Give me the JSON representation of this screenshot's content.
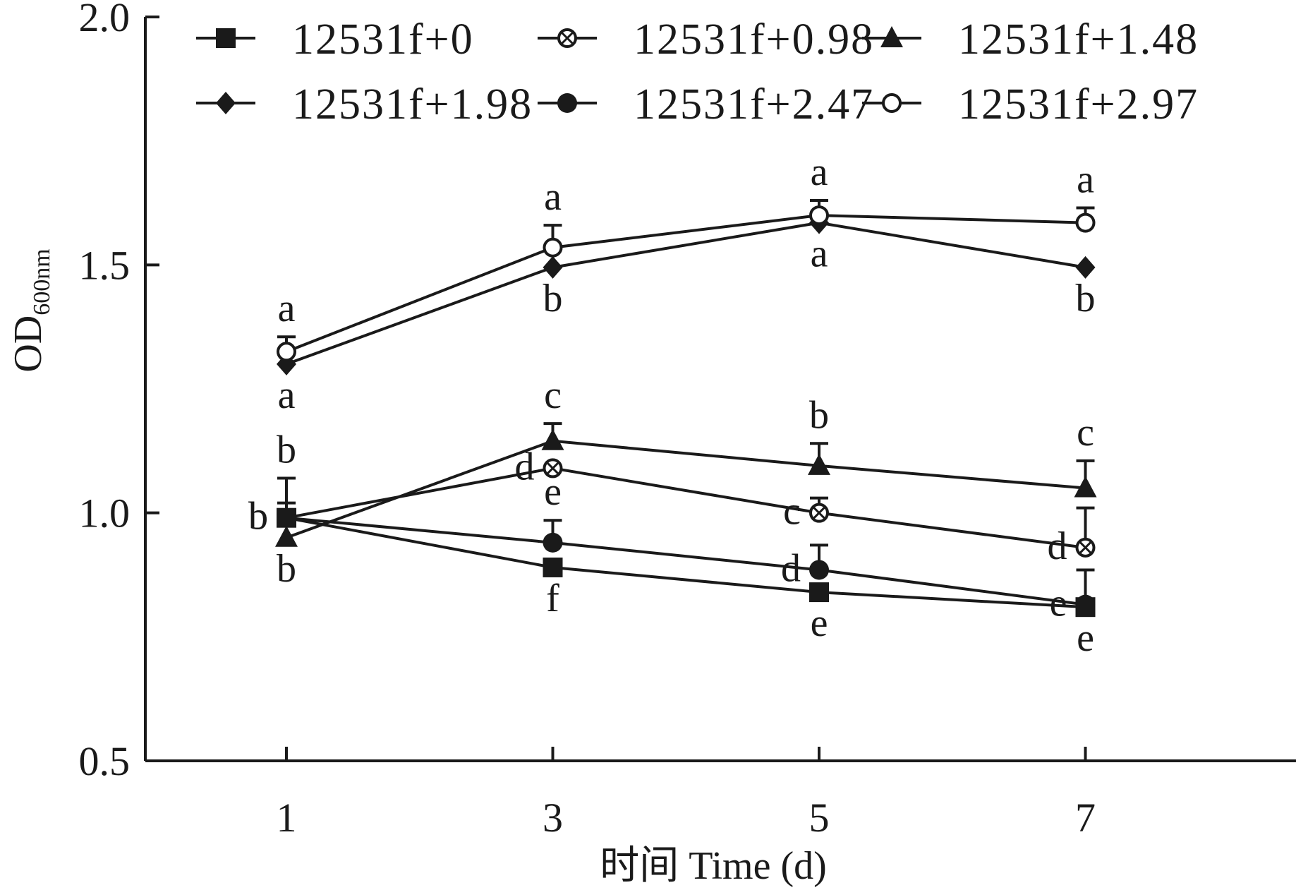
{
  "chart_data": {
    "type": "line",
    "xlabel": "时间 Time (d)",
    "ylabel_main": "OD",
    "ylabel_sub": "600nm",
    "x": [
      1,
      3,
      5,
      7
    ],
    "x_tick_labels": [
      "1",
      "3",
      "5",
      "7"
    ],
    "xlim": [
      0,
      8
    ],
    "ylim": [
      0.5,
      2.0
    ],
    "y_ticks": [
      0.5,
      1.0,
      1.5,
      2.0
    ],
    "y_tick_labels": [
      "0.5",
      "1.0",
      "1.5",
      "2.0"
    ],
    "grid": false,
    "legend_position": "top",
    "series": [
      {
        "name": "12531f+0",
        "marker": "square-filled",
        "values": [
          0.99,
          0.89,
          0.84,
          0.81
        ],
        "errors": [
          0.03,
          0.0,
          0.0,
          0.0
        ],
        "letters": [
          {
            "text": "b",
            "at": "left"
          },
          {
            "text": "f",
            "at": "below"
          },
          {
            "text": "e",
            "at": "below"
          },
          {
            "text": "e",
            "at": "below"
          }
        ]
      },
      {
        "name": "12531f+0.98",
        "marker": "circle-cross",
        "values": [
          0.99,
          1.09,
          1.0,
          0.93
        ],
        "errors": [
          0.0,
          0.0,
          0.03,
          0.08
        ],
        "letters": [
          {
            "text": "b",
            "at": "left"
          },
          {
            "text": "d",
            "at": "left"
          },
          {
            "text": "c",
            "at": "left"
          },
          {
            "text": "d",
            "at": "left"
          }
        ]
      },
      {
        "name": "12531f+1.48",
        "marker": "triangle-filled",
        "values": [
          0.95,
          1.145,
          1.095,
          1.05
        ],
        "errors": [
          0.0,
          0.035,
          0.045,
          0.055
        ],
        "letters": [
          {
            "text": "b",
            "at": "below"
          },
          {
            "text": "c",
            "at": "above"
          },
          {
            "text": "b",
            "at": "above"
          },
          {
            "text": "c",
            "at": "above"
          }
        ]
      },
      {
        "name": "12531f+1.98",
        "marker": "diamond-filled",
        "values": [
          1.3,
          1.495,
          1.585,
          1.495
        ],
        "errors": [
          0.0,
          0.0,
          0.0,
          0.0
        ],
        "letters": [
          {
            "text": "a",
            "at": "below"
          },
          {
            "text": "b",
            "at": "below"
          },
          {
            "text": "a",
            "at": "below"
          },
          {
            "text": "b",
            "at": "below"
          }
        ]
      },
      {
        "name": "12531f+2.47",
        "marker": "circle-filled",
        "values": [
          0.99,
          0.94,
          0.885,
          0.815
        ],
        "errors": [
          0.08,
          0.045,
          0.05,
          0.07
        ],
        "letters": [
          {
            "text": "b",
            "at": "above"
          },
          {
            "text": "e",
            "at": "above"
          },
          {
            "text": "d",
            "at": "left"
          },
          {
            "text": "e",
            "at": "left"
          }
        ]
      },
      {
        "name": "12531f+2.97",
        "marker": "circle-open",
        "values": [
          1.325,
          1.535,
          1.6,
          1.585
        ],
        "errors": [
          0.03,
          0.045,
          0.03,
          0.03
        ],
        "letters": [
          {
            "text": "a",
            "at": "above"
          },
          {
            "text": "a",
            "at": "above"
          },
          {
            "text": "a",
            "at": "above"
          },
          {
            "text": "a",
            "at": "above"
          }
        ]
      }
    ]
  }
}
